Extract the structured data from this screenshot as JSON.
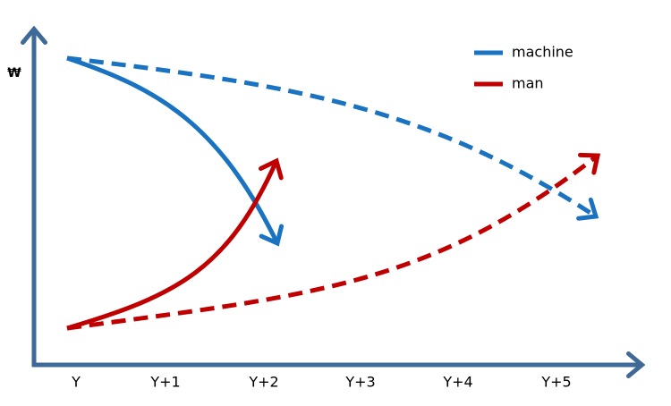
{
  "axes": {
    "y_label": "₩",
    "x_labels": [
      "Y",
      "Y+1",
      "Y+2",
      "Y+3",
      "Y+4",
      "Y+5"
    ]
  },
  "legend": [
    {
      "label": "machine",
      "color": "#1a73c1"
    },
    {
      "label": "man",
      "color": "#c00000"
    }
  ]
}
